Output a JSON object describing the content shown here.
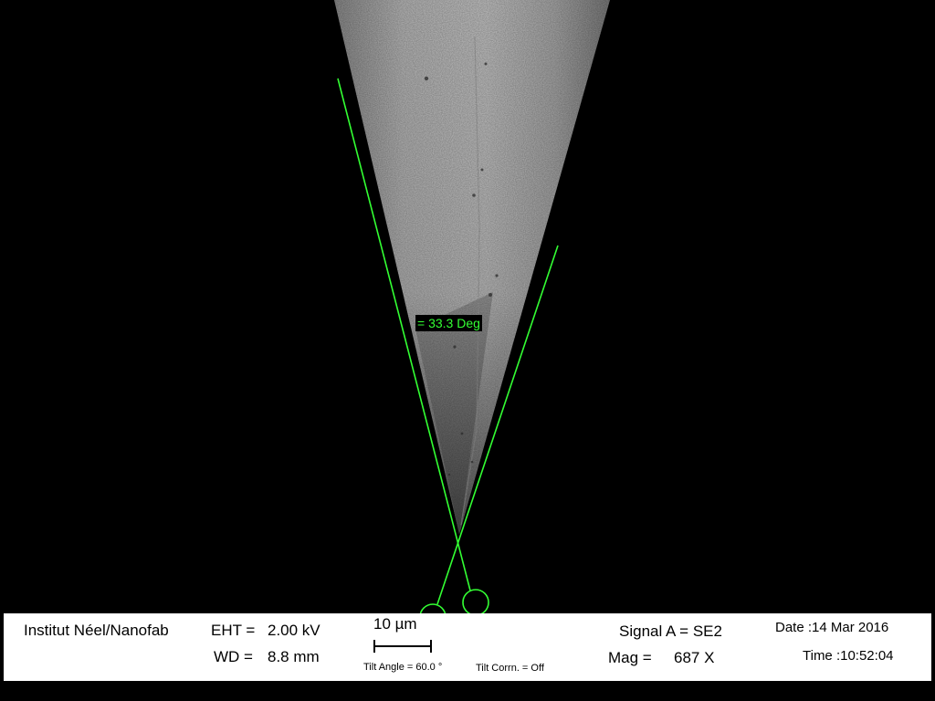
{
  "measurement": {
    "angle_label": "= 33.3 Deg",
    "overlay_color": "#33ff33"
  },
  "databar": {
    "institute": "Institut Néel/Nanofab",
    "eht_label": "EHT =",
    "eht_value": "2.00 kV",
    "wd_label": "WD =",
    "wd_value": "8.8 mm",
    "scale_label": "10 µm",
    "tilt_angle": "Tilt Angle =  60.0 °",
    "tilt_corrn": "Tilt Corrn. = Off",
    "signal": "Signal A = SE2",
    "mag_label": "Mag =",
    "mag_value": "687 X",
    "date": "Date :14 Mar 2016",
    "time": "Time :10:52:04"
  }
}
